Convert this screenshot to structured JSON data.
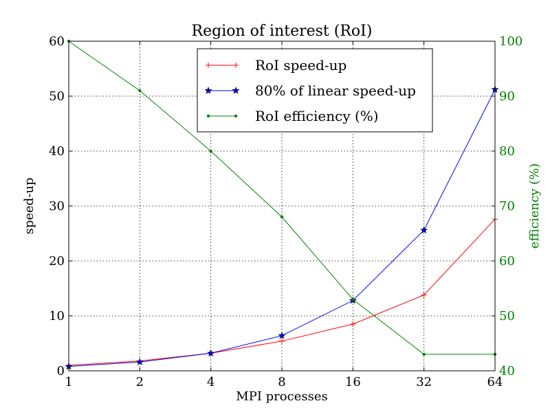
{
  "chart_data": {
    "type": "line",
    "title": "Region of interest (RoI)",
    "xlabel": "MPI processes",
    "ylabel": "speed-up",
    "y2label": "efficiency (%)",
    "x": [
      1,
      2,
      4,
      8,
      16,
      32,
      64
    ],
    "x_tick_labels": [
      "1",
      "2",
      "4",
      "8",
      "16",
      "32",
      "64"
    ],
    "xscale": "log2",
    "ylim": [
      0,
      60
    ],
    "y_ticks": [
      0,
      10,
      20,
      30,
      40,
      50,
      60
    ],
    "y2lim": [
      40,
      100
    ],
    "y2_ticks": [
      40,
      50,
      60,
      70,
      80,
      90,
      100
    ],
    "grid": true,
    "legend_position": "top-center",
    "series": [
      {
        "name": "RoI speed-up",
        "axis": "left",
        "color": "#ff0000",
        "marker": "plus",
        "values": [
          1.0,
          1.8,
          3.2,
          5.4,
          8.5,
          13.8,
          27.6
        ]
      },
      {
        "name": "80% of linear speed-up",
        "axis": "left",
        "color": "#0000ff",
        "marker": "star",
        "values": [
          0.8,
          1.6,
          3.2,
          6.4,
          12.8,
          25.6,
          51.2
        ]
      },
      {
        "name": "RoI efficiency (%)",
        "axis": "right",
        "color": "#008000",
        "marker": "dot",
        "values": [
          100,
          91,
          80,
          68,
          53,
          43,
          43
        ]
      }
    ],
    "colors": {
      "right_axis": "#008000"
    }
  }
}
